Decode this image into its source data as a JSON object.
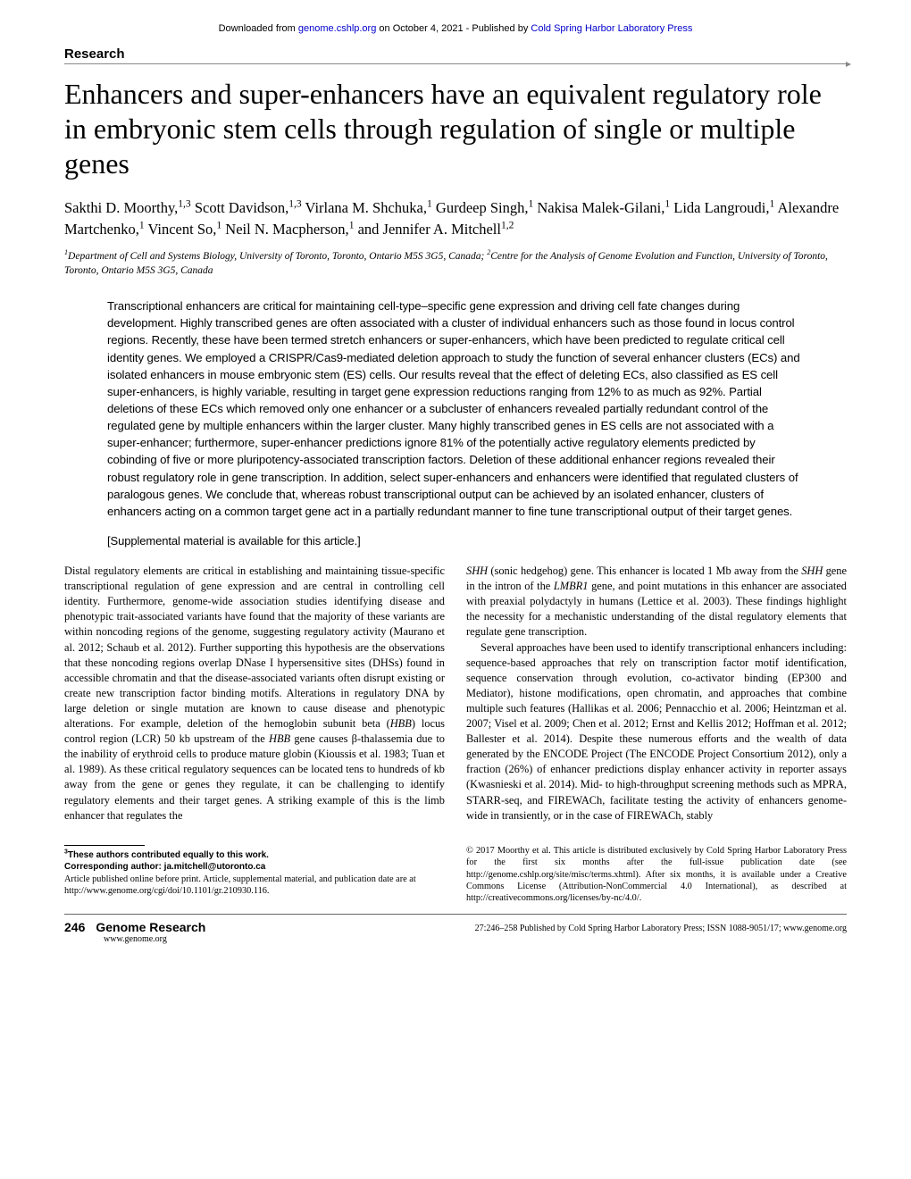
{
  "download_banner": {
    "prefix": "Downloaded from ",
    "link1": "genome.cshlp.org",
    "middle": " on October 4, 2021 - Published by ",
    "link2": "Cold Spring Harbor Laboratory Press"
  },
  "section_label": "Research",
  "title": "Enhancers and super-enhancers have an equivalent regulatory role in embryonic stem cells through regulation of single or multiple genes",
  "authors_html": "Sakthi D. Moorthy,<sup>1,3</sup> Scott Davidson,<sup>1,3</sup> Virlana M. Shchuka,<sup>1</sup> Gurdeep Singh,<sup>1</sup> Nakisa Malek-Gilani,<sup>1</sup> Lida Langroudi,<sup>1</sup> Alexandre Martchenko,<sup>1</sup> Vincent So,<sup>1</sup> Neil N. Macpherson,<sup>1</sup> and Jennifer A. Mitchell<sup>1,2</sup>",
  "affiliations_html": "<sup>1</sup>Department of Cell and Systems Biology, University of Toronto, Toronto, Ontario M5S 3G5, Canada; <sup>2</sup>Centre for the Analysis of Genome Evolution and Function, University of Toronto, Toronto, Ontario M5S 3G5, Canada",
  "abstract": "Transcriptional enhancers are critical for maintaining cell-type–specific gene expression and driving cell fate changes during development. Highly transcribed genes are often associated with a cluster of individual enhancers such as those found in locus control regions. Recently, these have been termed stretch enhancers or super-enhancers, which have been predicted to regulate critical cell identity genes. We employed a CRISPR/Cas9-mediated deletion approach to study the function of several enhancer clusters (ECs) and isolated enhancers in mouse embryonic stem (ES) cells. Our results reveal that the effect of deleting ECs, also classified as ES cell super-enhancers, is highly variable, resulting in target gene expression reductions ranging from 12% to as much as 92%. Partial deletions of these ECs which removed only one enhancer or a subcluster of enhancers revealed partially redundant control of the regulated gene by multiple enhancers within the larger cluster. Many highly transcribed genes in ES cells are not associated with a super-enhancer; furthermore, super-enhancer predictions ignore 81% of the potentially active regulatory elements predicted by cobinding of five or more pluripotency-associated transcription factors. Deletion of these additional enhancer regions revealed their robust regulatory role in gene transcription. In addition, select super-enhancers and enhancers were identified that regulated clusters of paralogous genes. We conclude that, whereas robust transcriptional output can be achieved by an isolated enhancer, clusters of enhancers acting on a common target gene act in a partially redundant manner to fine tune transcriptional output of their target genes.",
  "supplemental": "[Supplemental material is available for this article.]",
  "body": {
    "p1": "Distal regulatory elements are critical in establishing and maintaining tissue-specific transcriptional regulation of gene expression and are central in controlling cell identity. Furthermore, genome-wide association studies identifying disease and phenotypic trait-associated variants have found that the majority of these variants are within noncoding regions of the genome, suggesting regulatory activity (Maurano et al. 2012; Schaub et al. 2012). Further supporting this hypothesis are the observations that these noncoding regions overlap DNase I hypersensitive sites (DHSs) found in accessible chromatin and that the disease-associated variants often disrupt existing or create new transcription factor binding motifs. Alterations in regulatory DNA by large deletion or single mutation are known to cause disease and phenotypic alterations. For example, deletion of the hemoglobin subunit beta (HBB) locus control region (LCR) 50 kb upstream of the HBB gene causes β-thalassemia due to the inability of erythroid cells to produce mature globin (Kioussis et al. 1983; Tuan et al. 1989). As these critical regulatory sequences can be located tens to hundreds of kb away from the gene or genes they regulate, it can be challenging to identify regulatory elements and their target genes. A striking example of this is the limb enhancer that regulates the",
    "p2": "SHH (sonic hedgehog) gene. This enhancer is located 1 Mb away from the SHH gene in the intron of the LMBR1 gene, and point mutations in this enhancer are associated with preaxial polydactyly in humans (Lettice et al. 2003). These findings highlight the necessity for a mechanistic understanding of the distal regulatory elements that regulate gene transcription.",
    "p3": "Several approaches have been used to identify transcriptional enhancers including: sequence-based approaches that rely on transcription factor motif identification, sequence conservation through evolution, co-activator binding (EP300 and Mediator), histone modifications, open chromatin, and approaches that combine multiple such features (Hallikas et al. 2006; Pennacchio et al. 2006; Heintzman et al. 2007; Visel et al. 2009; Chen et al. 2012; Ernst and Kellis 2012; Hoffman et al. 2012; Ballester et al. 2014). Despite these numerous efforts and the wealth of data generated by the ENCODE Project (The ENCODE Project Consortium 2012), only a fraction (26%) of enhancer predictions display enhancer activity in reporter assays (Kwasnieski et al. 2014). Mid- to high-throughput screening methods such as MPRA, STARR-seq, and FIREWACh, facilitate testing the activity of enhancers genome-wide in transiently, or in the case of FIREWACh, stably"
  },
  "footnotes": {
    "equal": "These authors contributed equally to this work.",
    "corresponding_label": "Corresponding author: ",
    "corresponding_email": "ja.mitchell@utoronto.ca",
    "article_pub": "Article published online before print. Article, supplemental material, and publication date are at http://www.genome.org/cgi/doi/10.1101/gr.210930.116.",
    "copyright": "© 2017 Moorthy et al.   This article is distributed exclusively by Cold Spring Harbor Laboratory Press for the first six months after the full-issue publication date (see http://genome.cshlp.org/site/misc/terms.xhtml). After six months, it is available under a Creative Commons License (Attribution-NonCommercial 4.0 International), as described at http://creativecommons.org/licenses/by-nc/4.0/."
  },
  "footer": {
    "page_num": "246",
    "journal": "Genome Research",
    "url": "www.genome.org",
    "right": "27:246–258 Published by Cold Spring Harbor Laboratory Press; ISSN 1088-9051/17; www.genome.org"
  }
}
